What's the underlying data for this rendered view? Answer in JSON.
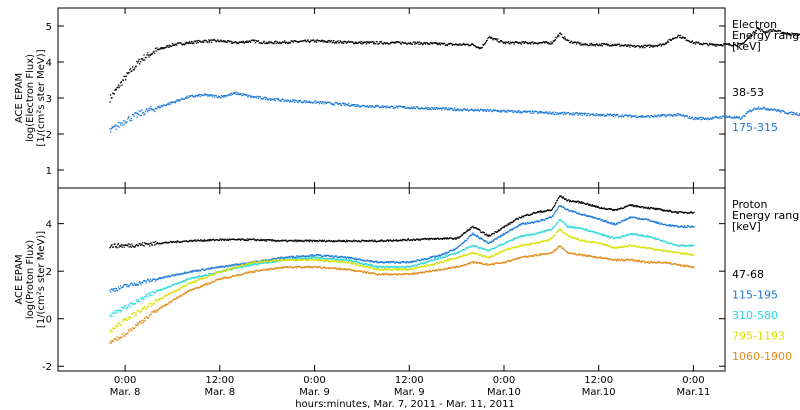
{
  "chart_data": [
    {
      "type": "scatter",
      "panel": "electron",
      "ylabel_lines": [
        "ACE EPAM",
        "log(Electron Flux)",
        "[1/(cm²s ster MeV)]"
      ],
      "ylim": [
        0.5,
        5.5
      ],
      "yticks": [
        1,
        2,
        3,
        4,
        5
      ],
      "legend_title": [
        "Electron",
        "Energy ranges",
        "[keV]"
      ],
      "series": [
        {
          "name": "38-53",
          "color": "#000000",
          "x": [
            -2,
            0,
            2,
            4,
            6,
            8,
            10,
            12,
            14,
            16,
            18,
            24,
            30,
            36,
            42,
            44,
            45,
            46,
            48,
            54,
            55,
            56,
            58,
            60,
            62,
            64,
            66,
            68,
            70,
            72,
            74,
            76,
            78,
            79,
            80,
            81,
            82,
            83,
            84,
            86,
            88,
            90,
            92,
            94
          ],
          "y": [
            3.0,
            3.6,
            4.1,
            4.35,
            4.5,
            4.55,
            4.6,
            4.6,
            4.55,
            4.6,
            4.55,
            4.6,
            4.55,
            4.55,
            4.5,
            4.5,
            4.4,
            4.7,
            4.55,
            4.55,
            4.8,
            4.6,
            4.5,
            4.5,
            4.5,
            4.45,
            4.45,
            4.5,
            4.75,
            4.55,
            4.5,
            4.5,
            4.5,
            4.7,
            4.95,
            4.85,
            4.9,
            4.85,
            4.8,
            4.75,
            4.65,
            4.5,
            4.4,
            4.25
          ]
        },
        {
          "name": "175-315",
          "color": "#1a78d8",
          "x": [
            -2,
            0,
            2,
            4,
            6,
            8,
            10,
            12,
            14,
            16,
            18,
            20,
            24,
            30,
            36,
            42,
            48,
            54,
            60,
            66,
            70,
            72,
            74,
            76,
            78,
            79,
            80,
            82,
            84,
            86,
            88,
            90,
            92,
            94
          ],
          "y": [
            2.1,
            2.4,
            2.6,
            2.75,
            2.9,
            3.05,
            3.1,
            3.05,
            3.15,
            3.05,
            3.0,
            2.95,
            2.9,
            2.8,
            2.75,
            2.7,
            2.65,
            2.6,
            2.55,
            2.5,
            2.55,
            2.45,
            2.45,
            2.5,
            2.45,
            2.65,
            2.75,
            2.7,
            2.6,
            2.55,
            2.5,
            2.4,
            2.3,
            2.15
          ]
        }
      ]
    },
    {
      "type": "scatter",
      "panel": "proton",
      "ylabel_lines": [
        "ACE EPAM",
        "log(Proton Flux)",
        "[1/(cm²s ster MeV)]"
      ],
      "ylim": [
        -2.2,
        5.5
      ],
      "yticks": [
        -2,
        0,
        2,
        4
      ],
      "legend_title": [
        "Proton",
        "Energy ranges",
        "[keV]"
      ],
      "xticks": [
        {
          "x": 0,
          "time": "0:00",
          "date": "Mar. 8"
        },
        {
          "x": 12,
          "time": "12:00",
          "date": "Mar. 8"
        },
        {
          "x": 24,
          "time": "0:00",
          "date": "Mar. 9"
        },
        {
          "x": 36,
          "time": "12:00",
          "date": "Mar. 9"
        },
        {
          "x": 48,
          "time": "0:00",
          "date": "Mar.10"
        },
        {
          "x": 60,
          "time": "12:00",
          "date": "Mar.10"
        },
        {
          "x": 72,
          "time": "0:00",
          "date": "Mar.11"
        }
      ],
      "xlabel": "hours:minutes, Mar.  7, 2011 - Mar. 11, 2011",
      "series": [
        {
          "name": "47-68",
          "color": "#000000",
          "x": [
            -2,
            0,
            4,
            8,
            12,
            16,
            20,
            24,
            28,
            32,
            36,
            40,
            42,
            44,
            46,
            48,
            50,
            52,
            54,
            55,
            56,
            58,
            60,
            62,
            64,
            66,
            68,
            70,
            72
          ],
          "y": [
            3.1,
            3.1,
            3.2,
            3.3,
            3.35,
            3.35,
            3.3,
            3.3,
            3.3,
            3.3,
            3.35,
            3.4,
            3.4,
            3.9,
            3.5,
            3.9,
            4.3,
            4.5,
            4.6,
            5.2,
            5.0,
            4.9,
            4.7,
            4.6,
            4.8,
            4.7,
            4.6,
            4.5,
            4.5
          ]
        },
        {
          "name": "115-195",
          "color": "#1a78d8",
          "x": [
            -2,
            0,
            4,
            8,
            12,
            16,
            20,
            24,
            28,
            32,
            36,
            40,
            42,
            44,
            46,
            48,
            50,
            52,
            54,
            55,
            56,
            58,
            60,
            62,
            64,
            66,
            68,
            70,
            72
          ],
          "y": [
            1.2,
            1.4,
            1.7,
            2.0,
            2.2,
            2.4,
            2.6,
            2.7,
            2.6,
            2.4,
            2.4,
            2.7,
            3.0,
            3.6,
            3.2,
            3.6,
            4.0,
            4.1,
            4.3,
            4.8,
            4.6,
            4.4,
            4.2,
            4.0,
            4.3,
            4.2,
            4.0,
            3.9,
            3.9
          ]
        },
        {
          "name": "310-580",
          "color": "#29d8d8",
          "x": [
            -2,
            0,
            4,
            8,
            12,
            16,
            20,
            24,
            28,
            32,
            36,
            40,
            42,
            44,
            46,
            48,
            50,
            52,
            54,
            55,
            56,
            58,
            60,
            62,
            64,
            66,
            68,
            70,
            72
          ],
          "y": [
            0.2,
            0.5,
            1.2,
            1.7,
            2.0,
            2.3,
            2.5,
            2.6,
            2.5,
            2.2,
            2.2,
            2.6,
            2.8,
            3.1,
            2.9,
            3.2,
            3.5,
            3.6,
            3.8,
            4.2,
            3.9,
            3.8,
            3.6,
            3.4,
            3.6,
            3.5,
            3.3,
            3.1,
            3.1
          ]
        },
        {
          "name": "795-1193",
          "color": "#d8e000",
          "x": [
            -2,
            0,
            4,
            8,
            12,
            16,
            20,
            24,
            28,
            32,
            36,
            40,
            42,
            44,
            46,
            48,
            50,
            52,
            54,
            55,
            56,
            58,
            60,
            62,
            64,
            66,
            68,
            70,
            72
          ],
          "y": [
            -0.5,
            0.0,
            0.8,
            1.5,
            2.0,
            2.4,
            2.5,
            2.5,
            2.4,
            2.1,
            2.1,
            2.4,
            2.6,
            2.8,
            2.6,
            2.9,
            3.1,
            3.2,
            3.4,
            3.8,
            3.5,
            3.3,
            3.2,
            3.0,
            3.1,
            3.0,
            2.9,
            2.8,
            2.7
          ]
        },
        {
          "name": "1060-1900",
          "color": "#e08a1a",
          "x": [
            -2,
            0,
            4,
            8,
            12,
            16,
            20,
            24,
            28,
            32,
            36,
            40,
            42,
            44,
            46,
            48,
            50,
            52,
            54,
            55,
            56,
            58,
            60,
            62,
            64,
            66,
            68,
            70,
            72
          ],
          "y": [
            -1.0,
            -0.6,
            0.4,
            1.2,
            1.7,
            2.0,
            2.2,
            2.2,
            2.1,
            1.9,
            1.9,
            2.1,
            2.2,
            2.4,
            2.3,
            2.4,
            2.6,
            2.7,
            2.8,
            3.1,
            2.8,
            2.7,
            2.6,
            2.5,
            2.5,
            2.4,
            2.4,
            2.3,
            2.2
          ]
        }
      ]
    }
  ]
}
